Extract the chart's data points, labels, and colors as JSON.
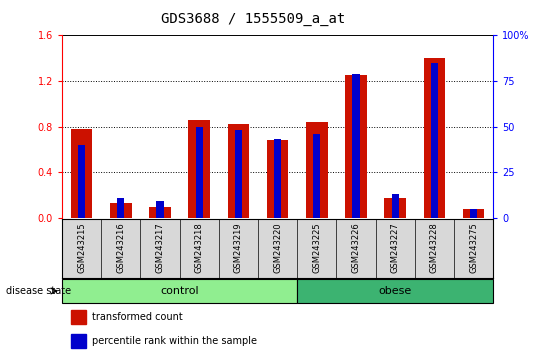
{
  "title": "GDS3688 / 1555509_a_at",
  "samples": [
    "GSM243215",
    "GSM243216",
    "GSM243217",
    "GSM243218",
    "GSM243219",
    "GSM243220",
    "GSM243225",
    "GSM243226",
    "GSM243227",
    "GSM243228",
    "GSM243275"
  ],
  "transformed_count": [
    0.78,
    0.13,
    0.09,
    0.86,
    0.82,
    0.68,
    0.84,
    1.25,
    0.17,
    1.4,
    0.08
  ],
  "percentile_rank": [
    40,
    11,
    9,
    50,
    48,
    43,
    46,
    79,
    13,
    85,
    5
  ],
  "groups": [
    {
      "label": "control",
      "start": 0,
      "end": 5,
      "color": "#90EE90"
    },
    {
      "label": "obese",
      "start": 6,
      "end": 10,
      "color": "#3CB371"
    }
  ],
  "ylim_left": [
    0,
    1.6
  ],
  "ylim_right": [
    0,
    100
  ],
  "yticks_left": [
    0,
    0.4,
    0.8,
    1.2,
    1.6
  ],
  "yticks_right": [
    0,
    25,
    50,
    75,
    100
  ],
  "bar_color_red": "#CC1100",
  "bar_color_blue": "#0000CC",
  "red_bar_width": 0.55,
  "blue_bar_width": 0.18,
  "group_label": "disease state",
  "legend_red": "transformed count",
  "legend_blue": "percentile rank within the sample",
  "sample_bg_color": "#D8D8D8",
  "plot_bg": "#FFFFFF",
  "dotted_lines": [
    0.4,
    0.8,
    1.2
  ],
  "title_fontsize": 10,
  "tick_fontsize": 7,
  "label_fontsize": 6,
  "group_fontsize": 8
}
